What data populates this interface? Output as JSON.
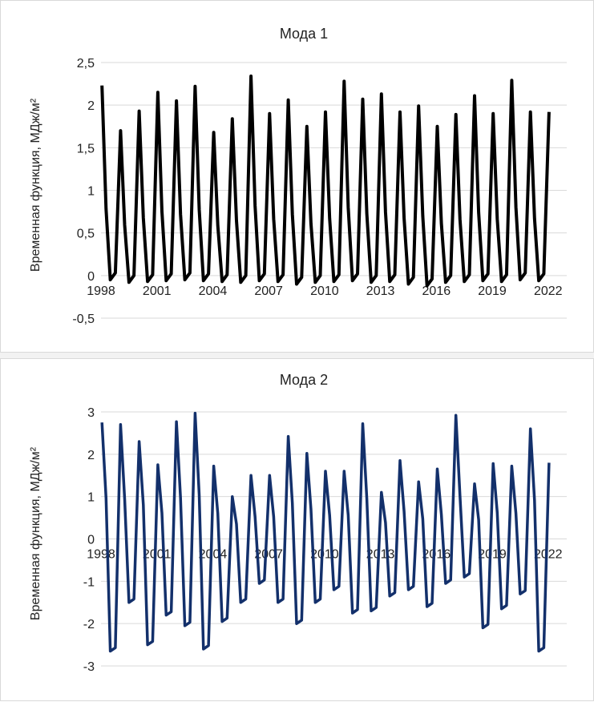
{
  "chart_data": [
    {
      "type": "line",
      "title": "Мода 1",
      "ylabel": "Временная функция, МДж/м²",
      "xlabel": "",
      "x_tick_labels": [
        "1998",
        "2001",
        "2004",
        "2007",
        "2010",
        "2013",
        "2016",
        "2019",
        "2022"
      ],
      "y_tick_labels": [
        "2,5",
        "2",
        "1,5",
        "1",
        "0,5",
        "0",
        "-0,5"
      ],
      "ylim": [
        -0.5,
        2.5
      ],
      "xlim": [
        1998,
        2023
      ],
      "grid": true,
      "series": [
        {
          "color": "#000000",
          "peaks": [
            2.23,
            1.7,
            1.93,
            2.15,
            2.05,
            2.22,
            1.68,
            1.84,
            2.34,
            1.9,
            2.06,
            1.75,
            1.92,
            2.28,
            2.07,
            2.13,
            1.92,
            1.99,
            1.75,
            1.89,
            2.11,
            1.9,
            2.29,
            1.92,
            1.92
          ],
          "troughs": [
            -0.05,
            -0.08,
            -0.07,
            -0.06,
            -0.05,
            -0.06,
            -0.07,
            -0.08,
            -0.06,
            -0.07,
            -0.1,
            -0.08,
            -0.07,
            -0.06,
            -0.08,
            -0.07,
            -0.1,
            -0.12,
            -0.08,
            -0.07,
            -0.06,
            -0.07,
            -0.05,
            -0.06
          ]
        }
      ]
    },
    {
      "type": "line",
      "title": "Мода 2",
      "ylabel": "Временная функция, МДж/м²",
      "xlabel": "",
      "x_tick_labels": [
        "1998",
        "2001",
        "2004",
        "2007",
        "2010",
        "2013",
        "2016",
        "2019",
        "2022"
      ],
      "y_tick_labels": [
        "3",
        "2",
        "1",
        "0",
        "-1",
        "-2",
        "-3"
      ],
      "ylim": [
        -3,
        3
      ],
      "xlim": [
        1998,
        2023
      ],
      "grid": true,
      "series": [
        {
          "color": "#13306b",
          "peaks": [
            2.75,
            2.7,
            2.3,
            1.75,
            2.77,
            2.97,
            1.72,
            1.0,
            1.5,
            1.5,
            2.42,
            2.02,
            1.6,
            1.6,
            2.72,
            1.1,
            1.85,
            1.35,
            1.65,
            2.92,
            1.3,
            1.78,
            1.72,
            2.6,
            1.8
          ],
          "troughs": [
            -2.65,
            -1.5,
            -2.5,
            -1.8,
            -2.05,
            -2.6,
            -1.95,
            -1.5,
            -1.05,
            -1.5,
            -2.0,
            -1.5,
            -1.2,
            -1.75,
            -1.7,
            -1.35,
            -1.2,
            -1.6,
            -1.05,
            -0.9,
            -2.1,
            -1.65,
            -1.3,
            -2.65
          ]
        }
      ]
    }
  ]
}
